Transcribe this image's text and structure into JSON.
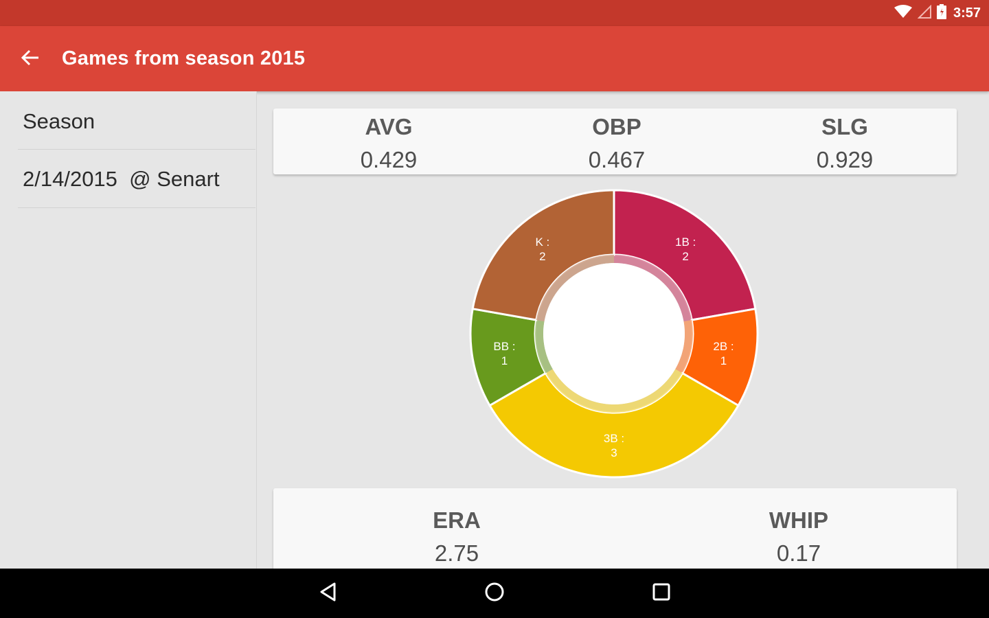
{
  "status_bar": {
    "time": "3:57",
    "icons": [
      "wifi-icon",
      "signal-icon",
      "battery-icon"
    ]
  },
  "app_bar": {
    "title": "Games from season 2015",
    "back_icon": "arrow-back-icon"
  },
  "sidebar": {
    "items": [
      {
        "label": "Season"
      },
      {
        "label": "2/14/2015  @ Senart"
      }
    ]
  },
  "batting": {
    "avg_label": "AVG",
    "avg_value": "0.429",
    "obp_label": "OBP",
    "obp_value": "0.467",
    "slg_label": "SLG",
    "slg_value": "0.929"
  },
  "pitching": {
    "era_label": "ERA",
    "era_value": "2.75",
    "whip_label": "WHIP",
    "whip_value": "0.17"
  },
  "chart_data": {
    "type": "pie",
    "donut": true,
    "slices": [
      {
        "label": "1B",
        "value": 2,
        "color": "#c2224f"
      },
      {
        "label": "2B",
        "value": 1,
        "color": "#fe6207"
      },
      {
        "label": "3B",
        "value": 3,
        "color": "#f4c902"
      },
      {
        "label": "BB",
        "value": 1,
        "color": "#689a1d"
      },
      {
        "label": "K",
        "value": 2,
        "color": "#b26335"
      }
    ]
  },
  "nav_bar": {
    "icons": [
      "back-triangle-icon",
      "home-circle-icon",
      "recents-square-icon"
    ]
  },
  "colors": {
    "status_bar": "#c3382b",
    "app_bar": "#db4538"
  }
}
